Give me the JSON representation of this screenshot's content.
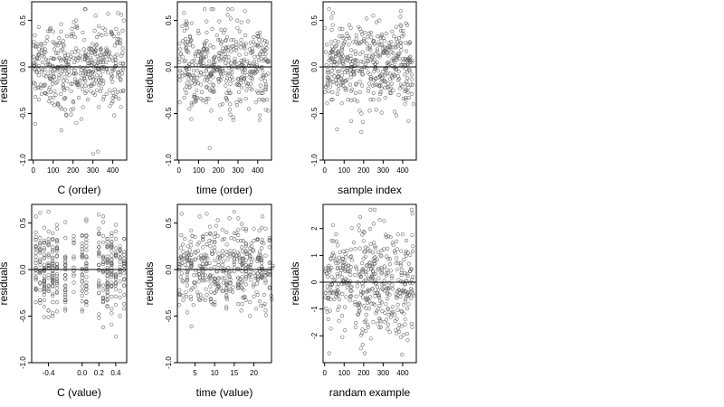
{
  "colors": {
    "background": "#ffffff",
    "point": "#555555",
    "axis": "#000000",
    "zero_line": "#000000"
  },
  "chart_data": [
    {
      "type": "scatter",
      "panel": "C (order)",
      "xlabel": "C (order)",
      "ylabel": "residuals",
      "xlim": [
        -8,
        470
      ],
      "ylim": [
        -1.0,
        0.7
      ],
      "xticks": [
        0,
        100,
        200,
        300,
        400
      ],
      "xtick_labels": [
        "0",
        "100",
        "200",
        "300",
        "400"
      ],
      "yticks": [
        -1.0,
        -0.5,
        0.0,
        0.5
      ],
      "ytick_labels": [
        "-1.0",
        "-0.5",
        "0.0",
        "0.5"
      ],
      "reference_line_y": 0,
      "n_points": 450,
      "marker": "open-circle",
      "grid": false,
      "x": [],
      "y": []
    },
    {
      "type": "scatter",
      "panel": "time (order)",
      "xlabel": "time (order)",
      "ylabel": "residuals",
      "xlim": [
        -8,
        470
      ],
      "ylim": [
        -1.0,
        0.7
      ],
      "xticks": [
        0,
        100,
        200,
        300,
        400
      ],
      "xtick_labels": [
        "0",
        "100",
        "200",
        "300",
        "400"
      ],
      "yticks": [
        -1.0,
        -0.5,
        0.0,
        0.5
      ],
      "ytick_labels": [
        "-1.0",
        "-0.5",
        "0.0",
        "0.5"
      ],
      "reference_line_y": 0,
      "n_points": 450,
      "marker": "open-circle",
      "grid": false,
      "x": [],
      "y": []
    },
    {
      "type": "scatter",
      "panel": "sample index",
      "xlabel": "sample index",
      "ylabel": "residuals",
      "xlim": [
        -8,
        470
      ],
      "ylim": [
        -1.0,
        0.7
      ],
      "xticks": [
        0,
        100,
        200,
        300,
        400
      ],
      "xtick_labels": [
        "0",
        "100",
        "200",
        "300",
        "400"
      ],
      "yticks": [
        -1.0,
        -0.5,
        0.0,
        0.5
      ],
      "ytick_labels": [
        "-1.0",
        "-0.5",
        "0.0",
        "0.5"
      ],
      "reference_line_y": 0,
      "n_points": 450,
      "marker": "open-circle",
      "grid": false,
      "x": [],
      "y": []
    },
    {
      "type": "scatter",
      "panel": "C (value)",
      "xlabel": "C (value)",
      "ylabel": "residuals",
      "xlim": [
        -0.6,
        0.53
      ],
      "ylim": [
        -1.0,
        0.7
      ],
      "xticks": [
        -0.4,
        0.0,
        0.2,
        0.4
      ],
      "xtick_labels": [
        "-0.4",
        "0.0",
        "0.2",
        "0.4"
      ],
      "yticks": [
        -1.0,
        -0.5,
        0.0,
        0.5
      ],
      "ytick_labels": [
        "-1.0",
        "-0.5",
        "0.0",
        "0.5"
      ],
      "reference_line_y": 0,
      "n_points": 450,
      "marker": "open-circle",
      "grid": false,
      "x_levels": [
        -0.55,
        -0.5,
        -0.45,
        -0.4,
        -0.35,
        -0.3,
        -0.2,
        -0.1,
        0.0,
        0.05,
        0.2,
        0.25,
        0.3,
        0.35,
        0.4,
        0.45,
        0.5
      ],
      "x": [],
      "y": []
    },
    {
      "type": "scatter",
      "panel": "time (value)",
      "xlabel": "time (value)",
      "ylabel": "residuals",
      "xlim": [
        0.5,
        24.5
      ],
      "ylim": [
        -1.0,
        0.7
      ],
      "xticks": [
        5,
        10,
        15,
        20
      ],
      "xtick_labels": [
        "5",
        "10",
        "15",
        "20"
      ],
      "yticks": [
        -1.0,
        -0.5,
        0.0,
        0.5
      ],
      "ytick_labels": [
        "-1.0",
        "-0.5",
        "0.0",
        "0.5"
      ],
      "reference_line_y": 0,
      "n_points": 450,
      "marker": "open-circle",
      "grid": false,
      "x": [],
      "y": []
    },
    {
      "type": "scatter",
      "panel": "randam example",
      "xlabel": "randam example",
      "ylabel": "residuals",
      "xlim": [
        -8,
        470
      ],
      "ylim": [
        -3.0,
        2.9
      ],
      "xticks": [
        0,
        100,
        200,
        300,
        400
      ],
      "xtick_labels": [
        "0",
        "100",
        "200",
        "300",
        "400"
      ],
      "yticks": [
        -2,
        -1,
        0,
        1,
        2
      ],
      "ytick_labels": [
        "-2",
        "-1",
        "0",
        "1",
        "2"
      ],
      "reference_line_y": 0,
      "n_points": 450,
      "marker": "open-circle",
      "grid": false,
      "x": [],
      "y": []
    }
  ]
}
